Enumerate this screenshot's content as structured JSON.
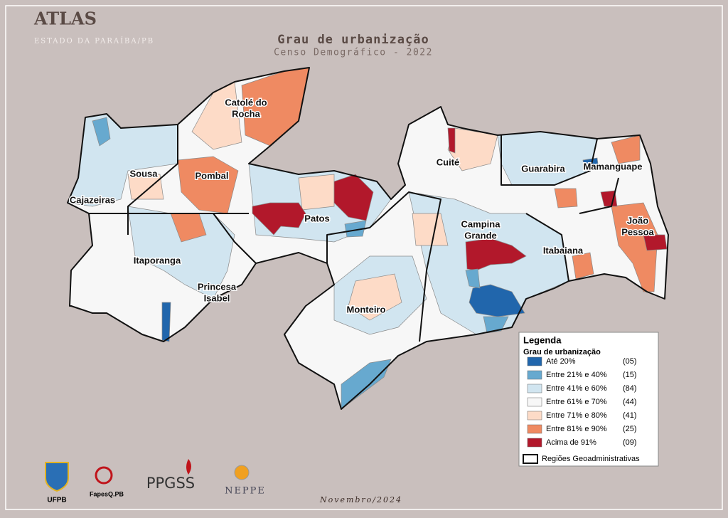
{
  "header": {
    "brand": "ATLAS",
    "state": "ESTADO DA PARAÍBA/PB"
  },
  "title": "Grau de urbanização",
  "subtitle": "Censo Demográfico - 2022",
  "regions": [
    [
      "Catolé do",
      "Rocha"
    ],
    [
      "Sousa"
    ],
    [
      "Pombal"
    ],
    [
      "Cajazeiras"
    ],
    [
      "Patos"
    ],
    [
      "Itaporanga"
    ],
    [
      "Princesa",
      "Isabel"
    ],
    [
      "Cuité"
    ],
    [
      "Guarabira"
    ],
    [
      "Mamanguape"
    ],
    [
      "Campina",
      "Grande"
    ],
    [
      "João",
      "Pessoa"
    ],
    [
      "Itabaiana"
    ],
    [
      "Monteiro"
    ]
  ],
  "legend": {
    "title": "Legenda",
    "subtitle": "Grau de urbanização",
    "items": [
      {
        "label": "Até 20%",
        "count": "(05)",
        "color": "#2166ac"
      },
      {
        "label": "Entre 21% e 40%",
        "count": "(15)",
        "color": "#67a9cf"
      },
      {
        "label": "Entre 41% e 60%",
        "count": "(84)",
        "color": "#d1e5f0"
      },
      {
        "label": "Entre 61% e 70%",
        "count": "(44)",
        "color": "#f7f7f7"
      },
      {
        "label": "Entre 71% e 80%",
        "count": "(41)",
        "color": "#fddbc7"
      },
      {
        "label": "Entre 81% e 90%",
        "count": "(25)",
        "color": "#ef8a62"
      },
      {
        "label": "Acima de 91%",
        "count": "(09)",
        "color": "#b2182b"
      }
    ],
    "boundary": "Regiões Geoadministrativas"
  },
  "logos": [
    "UFPB",
    "FapesQ.PB",
    "PPGSS",
    "NEPPE"
  ],
  "footer": "Novembro/2024"
}
